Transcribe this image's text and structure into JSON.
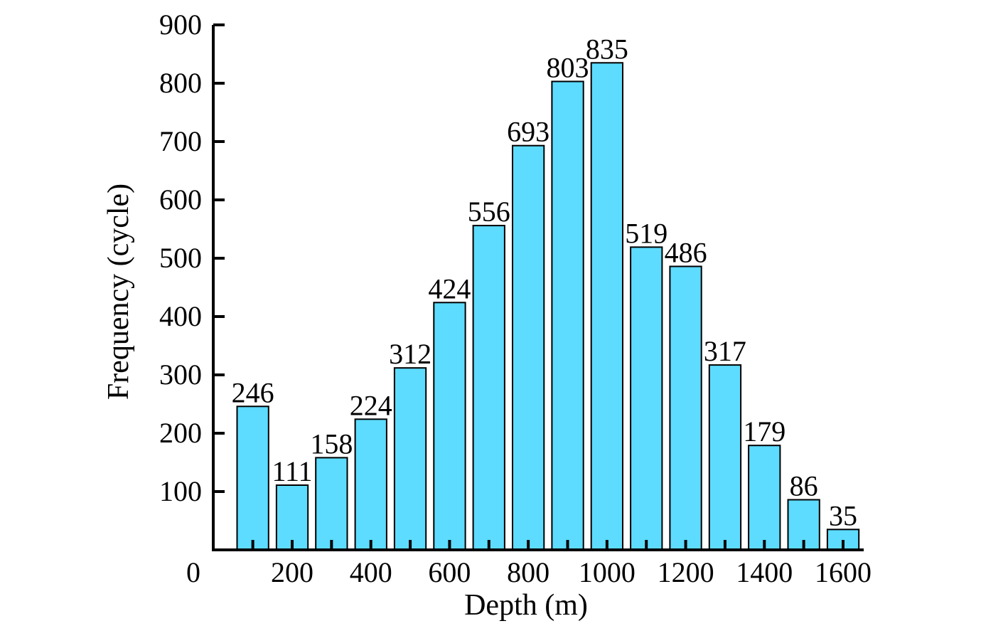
{
  "chart_data": {
    "type": "bar",
    "xlabel": "Depth (m)",
    "ylabel": "Frequency (cycle)",
    "ylim": [
      0,
      900
    ],
    "yticks": [
      "900",
      "800",
      "700",
      "600",
      "500",
      "400",
      "300",
      "200",
      "100"
    ],
    "origin_label": "0",
    "xticks": [
      "200",
      "400",
      "600",
      "800",
      "1000",
      "1200",
      "1400",
      "1600"
    ],
    "xtick_values": [
      200,
      400,
      600,
      800,
      1000,
      1200,
      1400,
      1600
    ],
    "bar_width_units": 80,
    "bar_centers": [
      100,
      200,
      300,
      400,
      500,
      600,
      700,
      800,
      900,
      1000,
      1100,
      1200,
      1300,
      1400,
      1500,
      1600
    ],
    "values": [
      246,
      111,
      158,
      224,
      312,
      424,
      556,
      693,
      803,
      835,
      519,
      486,
      317,
      179,
      86,
      35
    ],
    "bar_color": "#5ddcff",
    "bar_edge_color": "#000000",
    "grid": false,
    "legend": "none"
  }
}
